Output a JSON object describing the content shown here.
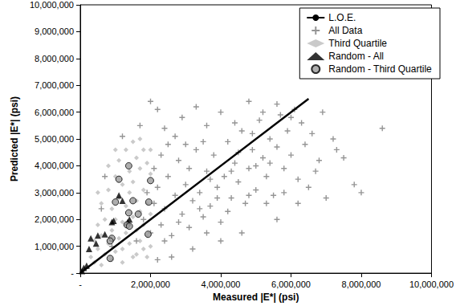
{
  "chart_data": {
    "type": "scatter",
    "xlabel": "Measured |E*| (psi)",
    "ylabel": "Predicted |E*| (psi)",
    "xlim": [
      0,
      10000000
    ],
    "ylim": [
      0,
      10000000
    ],
    "xticks": [
      {
        "value": 0,
        "label": "-"
      },
      {
        "value": 2000000,
        "label": "2,000,000"
      },
      {
        "value": 4000000,
        "label": "4,000,000"
      },
      {
        "value": 6000000,
        "label": "6,000,000"
      },
      {
        "value": 8000000,
        "label": "8,000,000"
      },
      {
        "value": 10000000,
        "label": "10,000,000"
      }
    ],
    "yticks": [
      {
        "value": 0,
        "label": "-"
      },
      {
        "value": 1000000,
        "label": "1,000,000"
      },
      {
        "value": 2000000,
        "label": "2,000,000"
      },
      {
        "value": 3000000,
        "label": "3,000,000"
      },
      {
        "value": 4000000,
        "label": "4,000,000"
      },
      {
        "value": 5000000,
        "label": "5,000,000"
      },
      {
        "value": 6000000,
        "label": "6,000,000"
      },
      {
        "value": 7000000,
        "label": "7,000,000"
      },
      {
        "value": 8000000,
        "label": "8,000,000"
      },
      {
        "value": 9000000,
        "label": "9,000,000"
      },
      {
        "value": 10000000,
        "label": "10,000,000"
      }
    ],
    "grid": false,
    "legend": "upper right",
    "series": [
      {
        "name": "L.O.E.",
        "type": "line",
        "color": "#000000",
        "line_style": "solid",
        "x": [
          0,
          6500000
        ],
        "values": [
          0,
          6500000
        ]
      },
      {
        "name": "All Data",
        "type": "scatter",
        "color": "#7a7a7a",
        "marker": "plus",
        "x": [
          1600000,
          1800000,
          2000000,
          2100000,
          2200000,
          2300000,
          2400000,
          2500000,
          2600000,
          2700000,
          2800000,
          2900000,
          3000000,
          3100000,
          3200000,
          3300000,
          3400000,
          3500000,
          3600000,
          3700000,
          3800000,
          3900000,
          4000000,
          4100000,
          4200000,
          4300000,
          4400000,
          4500000,
          4600000,
          4700000,
          4800000,
          4900000,
          5000000,
          5100000,
          5200000,
          5300000,
          5400000,
          5500000,
          5600000,
          5700000,
          5800000,
          5900000,
          6000000,
          6100000,
          6200000,
          6300000,
          6400000,
          6600000,
          6800000,
          7000000,
          7200000,
          7500000,
          7800000,
          8000000,
          8600000,
          6500000,
          6200000,
          5600000,
          4600000,
          4000000,
          3200000,
          2600000,
          2200000,
          2000000,
          2200000,
          1700000,
          1200000,
          600000,
          700000,
          900000,
          2400000,
          2900000,
          3300000,
          3600000,
          4000000,
          4400000,
          4800000,
          5200000,
          5600000,
          3000000,
          2700000,
          3500000,
          2300000,
          2500000,
          3100000,
          3700000,
          4300000,
          4900000,
          5400000,
          6000000,
          5000000,
          4500000,
          3900000,
          3400000,
          2800000,
          2400000,
          3600000,
          4200000,
          4800000,
          5300000,
          5800000,
          6700000,
          7300000,
          6900000,
          1900000,
          2100000
        ],
        "values": [
          1200000,
          2000000,
          1500000,
          2600000,
          3200000,
          1800000,
          2400000,
          3600000,
          1400000,
          2900000,
          4200000,
          2200000,
          3300000,
          1700000,
          2700000,
          4600000,
          3000000,
          2100000,
          3800000,
          2500000,
          4400000,
          3200000,
          1900000,
          3600000,
          4900000,
          2800000,
          4100000,
          3400000,
          5300000,
          2600000,
          3900000,
          4600000,
          3100000,
          5700000,
          4300000,
          3600000,
          5000000,
          2900000,
          4700000,
          5900000,
          3900000,
          5300000,
          4400000,
          6100000,
          3500000,
          5600000,
          4800000,
          5200000,
          4200000,
          2800000,
          5000000,
          4300000,
          3300000,
          3000000,
          5400000,
          3200000,
          2600000,
          2000000,
          1500000,
          1200000,
          900000,
          600000,
          500000,
          6400000,
          6100000,
          5500000,
          5100000,
          2400000,
          3600000,
          1000000,
          5400000,
          5800000,
          6200000,
          5500000,
          6000000,
          5600000,
          6400000,
          6000000,
          6300000,
          4800000,
          5100000,
          4900000,
          4400000,
          4800000,
          3900000,
          3500000,
          3800000,
          5200000,
          4100000,
          5800000,
          4000000,
          4500000,
          2800000,
          2400000,
          1900000,
          1200000,
          1500000,
          2300000,
          2900000,
          2600000,
          3000000,
          3800000,
          4600000,
          6000000,
          3000000,
          3900000
        ]
      },
      {
        "name": "Third Quartile",
        "type": "scatter",
        "color": "#bdbdbd",
        "marker": "diamond",
        "x": [
          300000,
          400000,
          500000,
          500000,
          600000,
          600000,
          700000,
          700000,
          800000,
          800000,
          900000,
          900000,
          1000000,
          1000000,
          1000000,
          1100000,
          1100000,
          1100000,
          1200000,
          1200000,
          1200000,
          1300000,
          1300000,
          1300000,
          1400000,
          1400000,
          1400000,
          1500000,
          1500000,
          1500000,
          1600000,
          1600000,
          1600000,
          1600000,
          1700000,
          1700000,
          1700000,
          1800000,
          1800000,
          1800000,
          1800000,
          1900000,
          1900000,
          1900000,
          2000000,
          2000000,
          2000000,
          400000,
          600000,
          900000,
          1200000,
          1500000,
          1700000,
          800000,
          1000000,
          500000,
          1900000,
          2000000
        ],
        "values": [
          600000,
          1200000,
          1800000,
          900000,
          2600000,
          1400000,
          700000,
          2000000,
          3100000,
          1100000,
          2400000,
          1600000,
          3600000,
          800000,
          2000000,
          4200000,
          2800000,
          1300000,
          3300000,
          1900000,
          900000,
          4600000,
          2500000,
          1500000,
          3800000,
          3000000,
          1100000,
          4900000,
          2100000,
          3400000,
          4300000,
          2700000,
          1600000,
          700000,
          3900000,
          2300000,
          1200000,
          4600000,
          3100000,
          1800000,
          900000,
          4100000,
          2600000,
          1400000,
          3700000,
          2200000,
          1000000,
          400000,
          300000,
          500000,
          400000,
          600000,
          5000000,
          4000000,
          4600000,
          3000000,
          600000,
          4600000
        ]
      },
      {
        "name": "Random - All",
        "type": "scatter",
        "color": "#000000",
        "marker": "triangle",
        "x": [
          300000,
          500000,
          450000,
          250000,
          100000,
          180000,
          50000,
          900000,
          950000,
          700000,
          1100000,
          1200000,
          1350000,
          1400000
        ],
        "values": [
          1300000,
          1400000,
          1100000,
          900000,
          200000,
          280000,
          80000,
          1900000,
          1950000,
          1450000,
          2900000,
          2700000,
          1900000,
          2000000
        ]
      },
      {
        "name": "Random - Third Quartile",
        "type": "scatter",
        "color": "#9a9a9a",
        "marker": "circle",
        "x": [
          1380000,
          2000000,
          1000000,
          1500000,
          1650000,
          1380000,
          1330000,
          1400000,
          1930000,
          900000,
          850000,
          850000,
          1950000,
          1100000
        ],
        "values": [
          4000000,
          3450000,
          2650000,
          2700000,
          2200000,
          2250000,
          1800000,
          1750000,
          1450000,
          1300000,
          1200000,
          550000,
          2650000,
          3500000
        ]
      }
    ]
  }
}
